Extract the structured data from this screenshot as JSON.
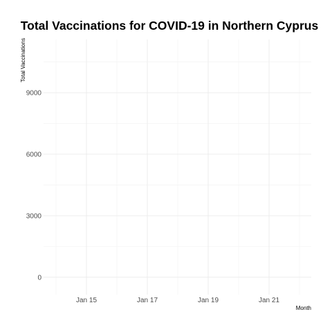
{
  "chart_data": {
    "type": "line",
    "title": "Total Vaccinations for COVID-19 in Northern Cyprus",
    "xlabel": "Month",
    "ylabel": "Total Vaccinations",
    "x_tick_labels": [
      "Jan 15",
      "Jan 17",
      "Jan 19",
      "Jan 21"
    ],
    "y_tick_labels": [
      "0",
      "3000",
      "6000",
      "9000"
    ],
    "y_ticks": [
      0,
      3000,
      6000,
      9000
    ],
    "ylim": [
      -850,
      11600
    ],
    "grid": true,
    "legend": "none",
    "series": []
  }
}
